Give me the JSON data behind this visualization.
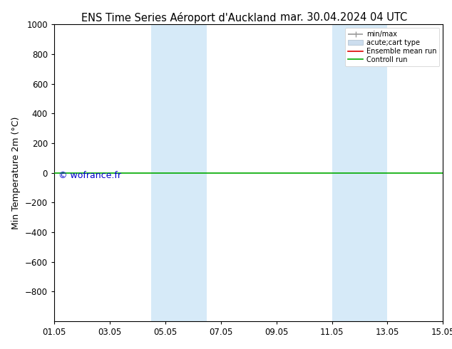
{
  "title_left": "ENS Time Series Aéroport d'Auckland",
  "title_right": "mar. 30.04.2024 04 UTC",
  "ylabel": "Min Temperature 2m (°C)",
  "ylim_top": -1000,
  "ylim_bottom": 1000,
  "yticks": [
    -800,
    -600,
    -400,
    -200,
    0,
    200,
    400,
    600,
    800,
    1000
  ],
  "xlim": [
    0,
    14
  ],
  "xtick_positions": [
    0,
    2,
    4,
    6,
    8,
    10,
    12,
    14
  ],
  "xtick_labels": [
    "01.05",
    "03.05",
    "05.05",
    "07.05",
    "09.05",
    "11.05",
    "13.05",
    "15.05"
  ],
  "blue_bands": [
    {
      "xmin": 3.5,
      "xmax": 5.5
    },
    {
      "xmin": 10.0,
      "xmax": 12.0
    }
  ],
  "band_color": "#d6eaf8",
  "green_line_y": 0,
  "green_line_color": "#00aa00",
  "watermark": "© wofrance.fr",
  "watermark_color": "#0000cc",
  "legend_entries": [
    {
      "label": "min/max",
      "color": "#999999",
      "lw": 1.2
    },
    {
      "label": "acute;cart type",
      "color": "#ccddee",
      "lw": 6
    },
    {
      "label": "Ensemble mean run",
      "color": "#dd0000",
      "lw": 1.2
    },
    {
      "label": "Controll run",
      "color": "#00aa00",
      "lw": 1.2
    }
  ],
  "background_color": "white",
  "title_fontsize": 10.5,
  "tick_fontsize": 8.5,
  "ylabel_fontsize": 9
}
